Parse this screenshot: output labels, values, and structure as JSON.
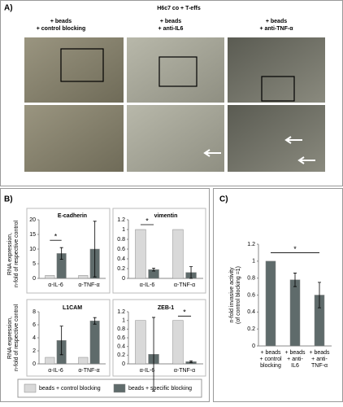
{
  "panel_a": {
    "label": "A)",
    "title": "H6c7 co + T-effs",
    "columns": [
      [
        "+ beads",
        "+ control blocking"
      ],
      [
        "+ beads",
        "+ anti-IL6"
      ],
      [
        "+ beads",
        "+ anti-TNF-α"
      ]
    ]
  },
  "panel_b": {
    "label": "B)",
    "ylabel": [
      "RNA expression,",
      "n-fold of respective control"
    ]
  },
  "panel_c": {
    "label": "C)"
  },
  "chart_data": [
    {
      "type": "bar",
      "title": "E-cadherin",
      "categories": [
        "α-IL-6",
        "α-TNF-α"
      ],
      "ylim": [
        0,
        20
      ],
      "yticks": [
        0,
        5,
        10,
        15,
        20
      ],
      "annotation": "*",
      "series": [
        {
          "name": "beads + control blocking",
          "color": "#d9d9d9",
          "values": [
            1,
            1
          ],
          "errors": [
            null,
            null
          ]
        },
        {
          "name": "beads + specific blocking",
          "color": "#5f6b6b",
          "values": [
            8.5,
            10
          ],
          "errors": [
            2,
            9.5
          ]
        }
      ]
    },
    {
      "type": "bar",
      "title": "vimentin",
      "categories": [
        "α-IL-6",
        "α-TNF-α"
      ],
      "ylim": [
        0,
        1.2
      ],
      "yticks": [
        0,
        0.2,
        0.4,
        0.6,
        0.8,
        1,
        1.2
      ],
      "annotation": "*",
      "series": [
        {
          "color": "#d9d9d9",
          "values": [
            1,
            1
          ],
          "errors": [
            null,
            null
          ]
        },
        {
          "color": "#5f6b6b",
          "values": [
            0.18,
            0.12
          ],
          "errors": [
            0.03,
            0.12
          ]
        }
      ]
    },
    {
      "type": "bar",
      "title": "L1CAM",
      "categories": [
        "α-IL-6",
        "α-TNF-α"
      ],
      "ylim": [
        0,
        8
      ],
      "yticks": [
        0,
        2,
        4,
        6,
        8
      ],
      "series": [
        {
          "color": "#d9d9d9",
          "values": [
            1,
            1
          ],
          "errors": [
            null,
            null
          ]
        },
        {
          "color": "#5f6b6b",
          "values": [
            3.6,
            6.6
          ],
          "errors": [
            2.2,
            0.5
          ]
        }
      ]
    },
    {
      "type": "bar",
      "title": "ZEB-1",
      "categories": [
        "α-IL-6",
        "α-TNF-α"
      ],
      "ylim": [
        0,
        1.2
      ],
      "yticks": [
        0,
        0.2,
        0.4,
        0.6,
        0.8,
        1,
        1.2
      ],
      "annotation": "*",
      "series": [
        {
          "color": "#d9d9d9",
          "values": [
            1,
            1
          ],
          "errors": [
            null,
            null
          ]
        },
        {
          "color": "#5f6b6b",
          "values": [
            0.22,
            0.05
          ],
          "errors": [
            0.85,
            0.02
          ]
        }
      ]
    },
    {
      "type": "bar",
      "categories": [
        [
          "+ beads",
          "+ control",
          "blocking"
        ],
        [
          "+ beads",
          "+ anti-",
          "IL6"
        ],
        [
          "+ beads",
          "+ anti-",
          "TNF-α"
        ]
      ],
      "ylim": [
        0,
        1.2
      ],
      "yticks": [
        0,
        0.2,
        0.4,
        0.6,
        0.8,
        1,
        1.2
      ],
      "annotation": "*",
      "ylabel": [
        "n-fold invasive activity",
        "(of control blocking =1)"
      ],
      "series": [
        {
          "color": "#5f6b6b",
          "values": [
            1,
            0.78,
            0.6
          ],
          "errors": [
            null,
            0.08,
            0.15
          ]
        }
      ]
    }
  ]
}
